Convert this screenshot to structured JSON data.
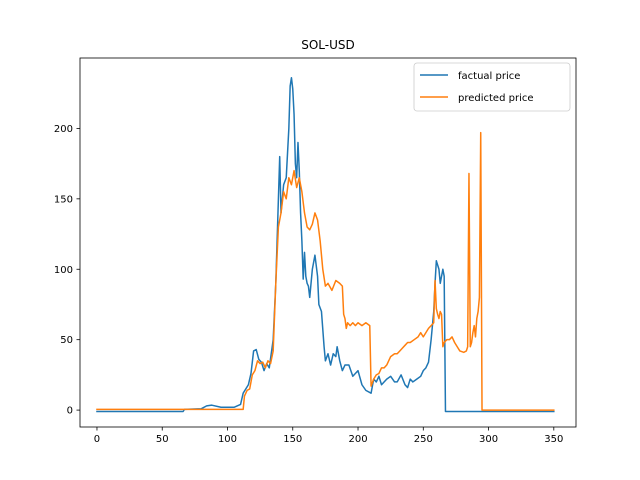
{
  "chart_data": {
    "type": "line",
    "title": "SOL-USD",
    "xlabel": "",
    "ylabel": "",
    "xlim": [
      -13,
      367
    ],
    "ylim": [
      -12,
      250
    ],
    "xticks": [
      0,
      50,
      100,
      150,
      200,
      250,
      300,
      350
    ],
    "yticks": [
      0,
      50,
      100,
      150,
      200
    ],
    "grid": false,
    "legend_position": "top-right",
    "series": [
      {
        "name": "factual price",
        "color": "#1f77b4",
        "points": [
          [
            0,
            -1
          ],
          [
            66,
            -1
          ],
          [
            67,
            0.5
          ],
          [
            80,
            1
          ],
          [
            84,
            3
          ],
          [
            88,
            3.5
          ],
          [
            95,
            2
          ],
          [
            100,
            2
          ],
          [
            105,
            2
          ],
          [
            110,
            4
          ],
          [
            112,
            12
          ],
          [
            116,
            18
          ],
          [
            118,
            26
          ],
          [
            120,
            42
          ],
          [
            122,
            43
          ],
          [
            124,
            36
          ],
          [
            126,
            34
          ],
          [
            128,
            28
          ],
          [
            130,
            33
          ],
          [
            132,
            30
          ],
          [
            135,
            50
          ],
          [
            137,
            90
          ],
          [
            139,
            150
          ],
          [
            140,
            180
          ],
          [
            141,
            140
          ],
          [
            143,
            160
          ],
          [
            145,
            165
          ],
          [
            147,
            200
          ],
          [
            148,
            230
          ],
          [
            149,
            236
          ],
          [
            150,
            228
          ],
          [
            151,
            210
          ],
          [
            152,
            175
          ],
          [
            153,
            165
          ],
          [
            154,
            190
          ],
          [
            155,
            170
          ],
          [
            156,
            140
          ],
          [
            157,
            120
          ],
          [
            158,
            93
          ],
          [
            159,
            112
          ],
          [
            160,
            95
          ],
          [
            161,
            90
          ],
          [
            162,
            88
          ],
          [
            163,
            80
          ],
          [
            165,
            100
          ],
          [
            167,
            110
          ],
          [
            169,
            95
          ],
          [
            170,
            75
          ],
          [
            172,
            70
          ],
          [
            174,
            45
          ],
          [
            175,
            35
          ],
          [
            177,
            40
          ],
          [
            179,
            32
          ],
          [
            181,
            40
          ],
          [
            183,
            38
          ],
          [
            184,
            45
          ],
          [
            186,
            35
          ],
          [
            188,
            28
          ],
          [
            190,
            32
          ],
          [
            193,
            32
          ],
          [
            196,
            24
          ],
          [
            200,
            28
          ],
          [
            203,
            18
          ],
          [
            206,
            14
          ],
          [
            210,
            12
          ],
          [
            212,
            22
          ],
          [
            214,
            20
          ],
          [
            216,
            24
          ],
          [
            218,
            18
          ],
          [
            222,
            22
          ],
          [
            225,
            24
          ],
          [
            228,
            20
          ],
          [
            230,
            20
          ],
          [
            233,
            25
          ],
          [
            236,
            18
          ],
          [
            238,
            16
          ],
          [
            240,
            22
          ],
          [
            242,
            20
          ],
          [
            245,
            22
          ],
          [
            248,
            24
          ],
          [
            250,
            28
          ],
          [
            252,
            30
          ],
          [
            254,
            34
          ],
          [
            256,
            50
          ],
          [
            258,
            70
          ],
          [
            259,
            90
          ],
          [
            260,
            106
          ],
          [
            262,
            100
          ],
          [
            263,
            90
          ],
          [
            264,
            95
          ],
          [
            265,
            100
          ],
          [
            266,
            95
          ],
          [
            267,
            -1
          ],
          [
            350,
            -1
          ]
        ]
      },
      {
        "name": "predicted price",
        "color": "#ff7f0e",
        "points": [
          [
            0,
            0.5
          ],
          [
            112,
            0.5
          ],
          [
            113,
            10
          ],
          [
            115,
            14
          ],
          [
            117,
            15
          ],
          [
            119,
            25
          ],
          [
            121,
            28
          ],
          [
            123,
            35
          ],
          [
            125,
            33
          ],
          [
            127,
            34
          ],
          [
            129,
            30
          ],
          [
            131,
            35
          ],
          [
            133,
            33
          ],
          [
            135,
            42
          ],
          [
            137,
            90
          ],
          [
            139,
            130
          ],
          [
            141,
            140
          ],
          [
            143,
            155
          ],
          [
            145,
            150
          ],
          [
            147,
            165
          ],
          [
            149,
            160
          ],
          [
            151,
            170
          ],
          [
            153,
            158
          ],
          [
            155,
            165
          ],
          [
            157,
            155
          ],
          [
            159,
            140
          ],
          [
            161,
            130
          ],
          [
            163,
            128
          ],
          [
            165,
            132
          ],
          [
            167,
            140
          ],
          [
            169,
            135
          ],
          [
            171,
            120
          ],
          [
            173,
            100
          ],
          [
            175,
            88
          ],
          [
            177,
            90
          ],
          [
            180,
            85
          ],
          [
            183,
            92
          ],
          [
            186,
            90
          ],
          [
            188,
            88
          ],
          [
            189,
            68
          ],
          [
            190,
            65
          ],
          [
            191,
            58
          ],
          [
            192,
            62
          ],
          [
            194,
            60
          ],
          [
            196,
            62
          ],
          [
            198,
            60
          ],
          [
            200,
            62
          ],
          [
            203,
            60
          ],
          [
            206,
            62
          ],
          [
            209,
            60
          ],
          [
            210,
            17
          ],
          [
            212,
            22
          ],
          [
            214,
            25
          ],
          [
            216,
            26
          ],
          [
            218,
            30
          ],
          [
            220,
            30
          ],
          [
            222,
            32
          ],
          [
            225,
            38
          ],
          [
            228,
            40
          ],
          [
            230,
            40
          ],
          [
            232,
            42
          ],
          [
            234,
            44
          ],
          [
            236,
            46
          ],
          [
            238,
            48
          ],
          [
            240,
            48
          ],
          [
            243,
            50
          ],
          [
            246,
            52
          ],
          [
            248,
            55
          ],
          [
            250,
            52
          ],
          [
            252,
            55
          ],
          [
            254,
            58
          ],
          [
            256,
            60
          ],
          [
            258,
            62
          ],
          [
            259,
            92
          ],
          [
            260,
            72
          ],
          [
            261,
            68
          ],
          [
            262,
            65
          ],
          [
            263,
            70
          ],
          [
            264,
            68
          ],
          [
            265,
            45
          ],
          [
            266,
            48
          ],
          [
            268,
            50
          ],
          [
            270,
            50
          ],
          [
            272,
            52
          ],
          [
            274,
            48
          ],
          [
            276,
            45
          ],
          [
            278,
            42
          ],
          [
            281,
            41
          ],
          [
            283,
            42
          ],
          [
            284,
            45
          ],
          [
            285,
            168
          ],
          [
            286,
            45
          ],
          [
            287,
            48
          ],
          [
            288,
            55
          ],
          [
            289,
            60
          ],
          [
            290,
            52
          ],
          [
            291,
            65
          ],
          [
            292,
            70
          ],
          [
            293,
            80
          ],
          [
            294,
            197
          ],
          [
            295,
            0
          ],
          [
            350,
            0
          ]
        ]
      }
    ]
  }
}
